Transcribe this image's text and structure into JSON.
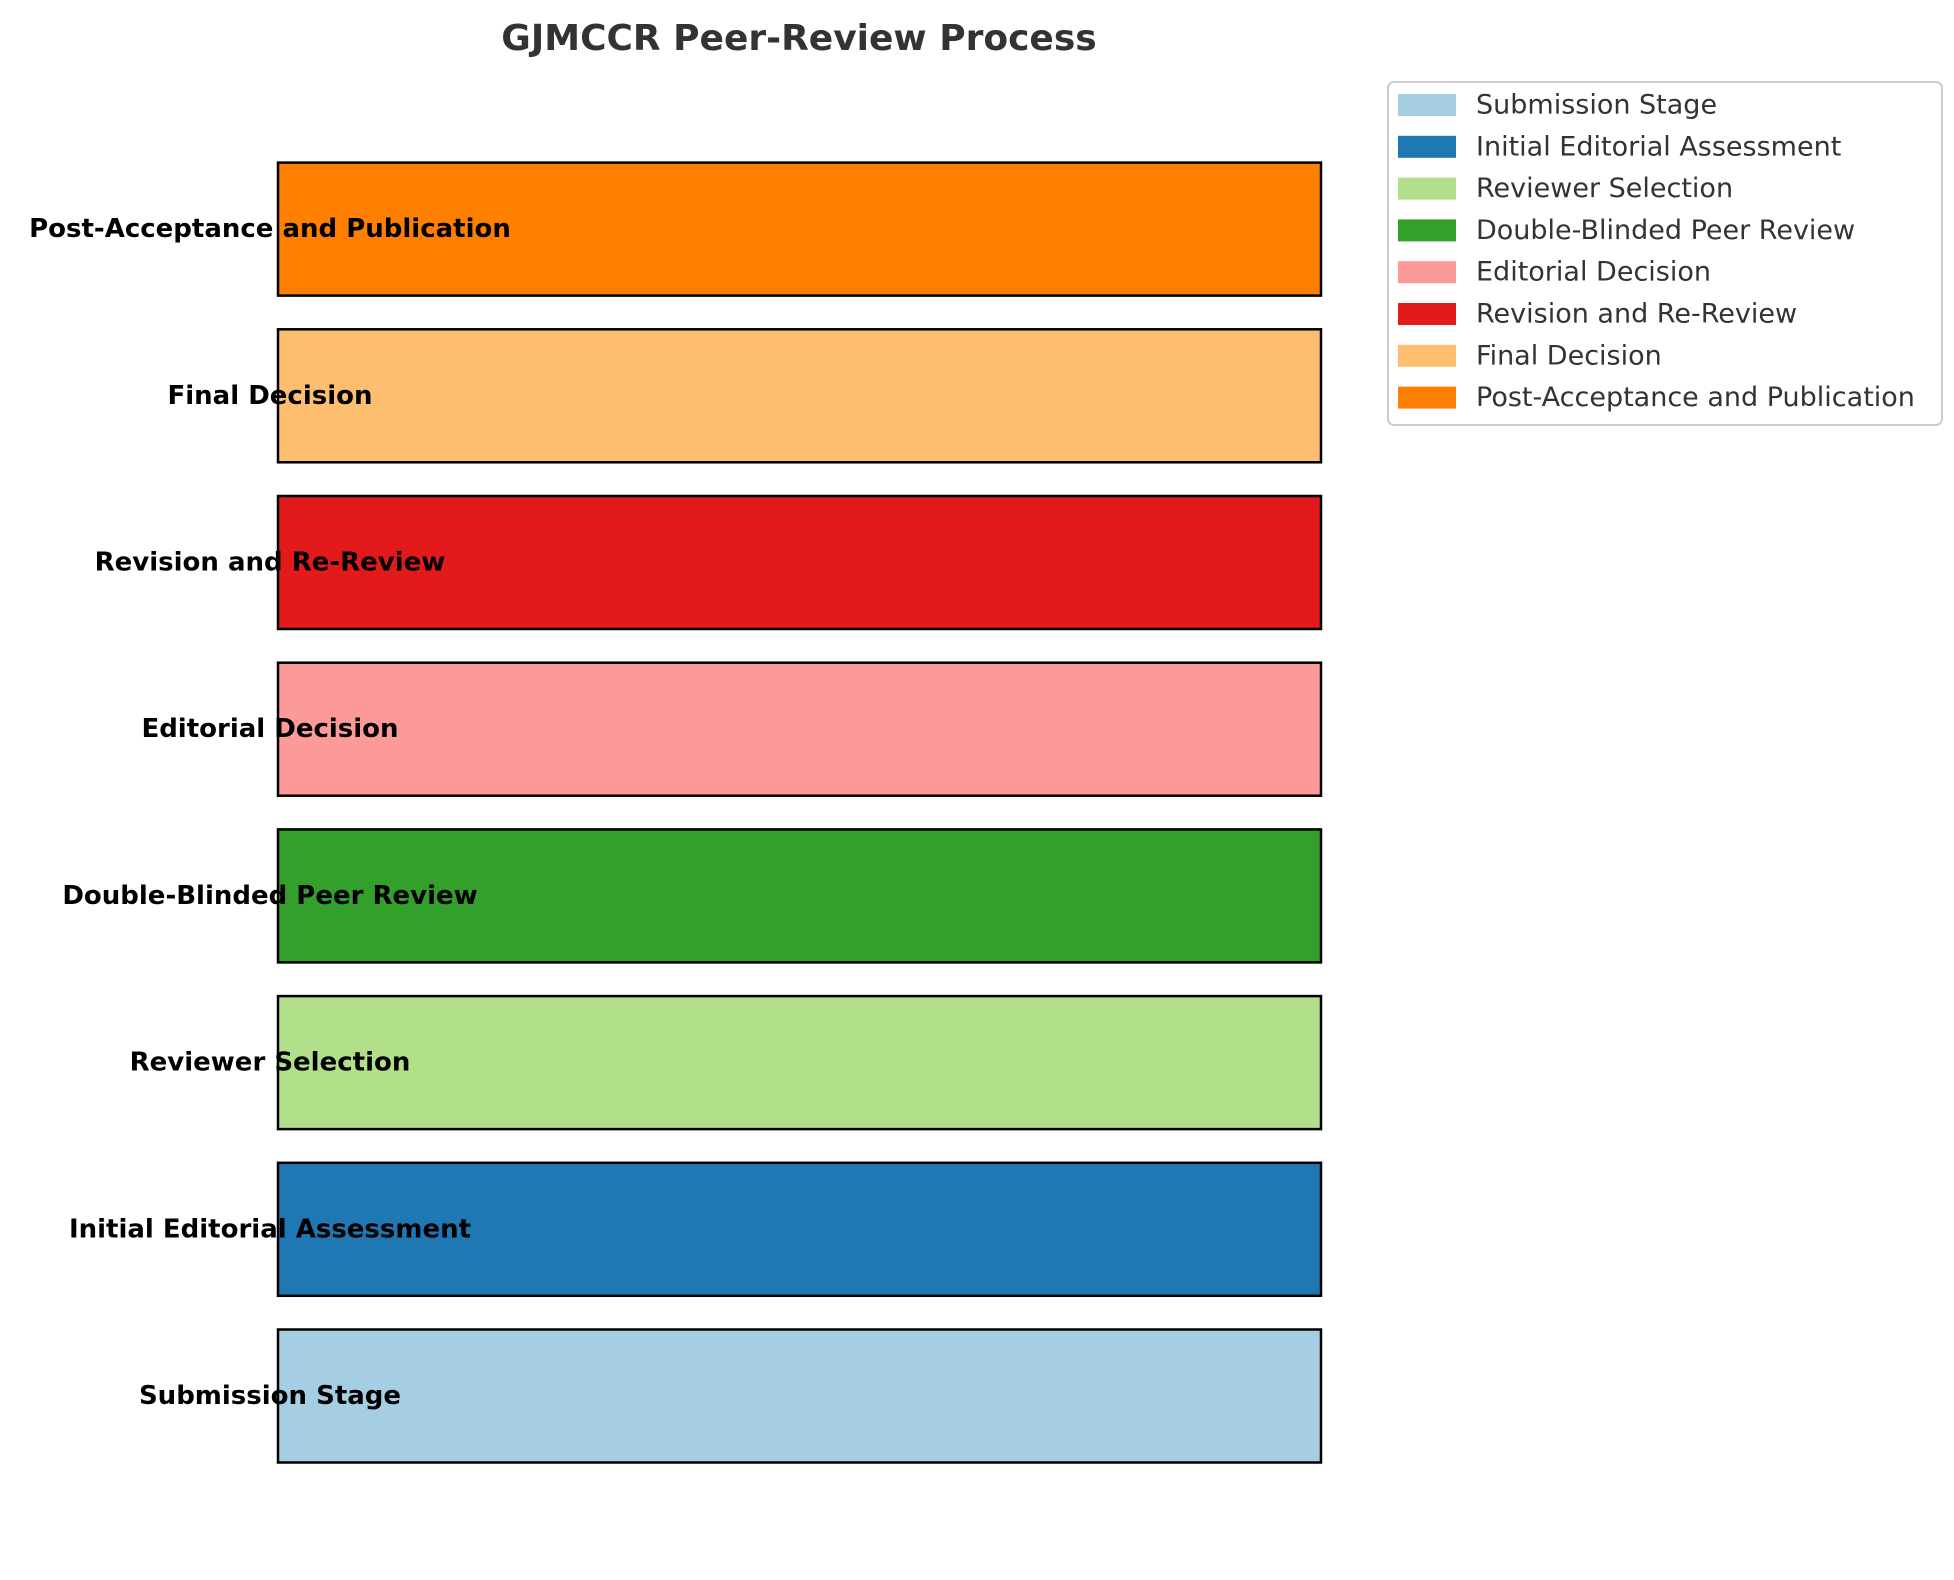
{
  "chart_data": {
    "type": "bar",
    "orientation": "horizontal",
    "title": "GJMCCR Peer-Review Process",
    "xlabel": "",
    "ylabel": "",
    "grid": false,
    "legend_position": "outside-top-right",
    "categories": [
      "Submission Stage",
      "Initial Editorial Assessment",
      "Reviewer Selection",
      "Double-Blinded Peer Review",
      "Editorial Decision",
      "Revision and Re-Review",
      "Final Decision",
      "Post-Acceptance and Publication"
    ],
    "values": [
      1,
      1,
      1,
      1,
      1,
      1,
      1,
      1
    ],
    "xlim": [
      0,
      1
    ],
    "colors": [
      "#a6cee3",
      "#1f78b4",
      "#b2df8a",
      "#33a02c",
      "#fb9a99",
      "#e31a1c",
      "#fdbf6f",
      "#ff7f00"
    ],
    "legend": [
      "Submission Stage",
      "Initial Editorial Assessment",
      "Reviewer Selection",
      "Double-Blinded Peer Review",
      "Editorial Decision",
      "Revision and Re-Review",
      "Final Decision",
      "Post-Acceptance and Publication"
    ]
  }
}
